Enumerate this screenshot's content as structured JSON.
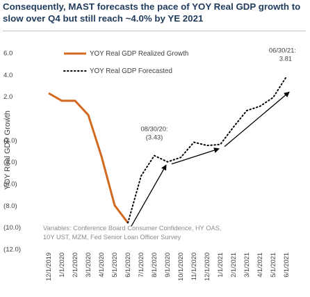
{
  "title": "Consequently, MAST forecasts the pace of YOY Real GDP growth to slow over Q4 but still reach ~4.0% by YE 2021",
  "chart_data": {
    "type": "line",
    "ylabel": "YOY Real GDP Growth",
    "ylim": [
      -12,
      6
    ],
    "yticks": [
      6,
      4,
      2,
      0,
      -2,
      -4,
      -6,
      -8,
      -10,
      -12
    ],
    "ytick_labels": [
      "6.0",
      "4.0",
      "2.0",
      "-",
      "(2.0)",
      "(4.0)",
      "(6.0)",
      "(8.0)",
      "(10.0)",
      "(12.0)"
    ],
    "categories": [
      "12/1/2019",
      "1/1/2020",
      "2/1/2020",
      "3/1/2020",
      "4/1/2020",
      "5/1/2020",
      "6/1/2020",
      "7/1/2020",
      "8/1/2020",
      "9/1/2020",
      "10/1/2020",
      "11/1/2020",
      "12/1/2020",
      "1/1/2021",
      "2/1/2021",
      "3/1/2021",
      "4/1/2021",
      "5/1/2021",
      "6/1/2021"
    ],
    "series": [
      {
        "name": "YOY Real GDP Realized Growth",
        "style": "solid",
        "color": "#d2691e",
        "values": [
          2.3,
          1.6,
          1.6,
          0.3,
          -3.5,
          -8.0,
          -9.6,
          null,
          null,
          null,
          null,
          null,
          null,
          null,
          null,
          null,
          null,
          null,
          null
        ]
      },
      {
        "name": "YOY Real GDP Forecasted",
        "style": "dotted",
        "color": "#000000",
        "values": [
          null,
          null,
          null,
          null,
          null,
          null,
          -9.6,
          -5.3,
          -3.43,
          -4.0,
          -3.6,
          -2.2,
          -2.5,
          -2.4,
          -0.8,
          0.7,
          1.1,
          1.9,
          3.81
        ]
      }
    ],
    "annotations": [
      {
        "text": "08/30/20:",
        "value_text": "(3.43)",
        "x": "8/1/2020",
        "y": -3.43
      },
      {
        "text": "06/30/21:",
        "value_text": "3.81",
        "x": "6/1/2021",
        "y": 3.81
      }
    ],
    "trend_arrows": [
      {
        "from": {
          "x": "6/1/2020",
          "y": -9.9
        },
        "to": {
          "x": "9/1/2020",
          "y": -4.3
        }
      },
      {
        "from": {
          "x": "9/1/2020",
          "y": -4.2
        },
        "to": {
          "x": "1/1/2021",
          "y": -2.8
        }
      },
      {
        "from": {
          "x": "1/1/2021",
          "y": -2.6
        },
        "to": {
          "x": "6/1/2021",
          "y": 2.4
        }
      }
    ],
    "note": [
      "Variables: Conference Board Consumer Confidence, HY OAS,",
      "10Y UST, MZM, Fed Senior Loan Officer Survey"
    ],
    "legend_position": "top-left",
    "grid": false
  }
}
